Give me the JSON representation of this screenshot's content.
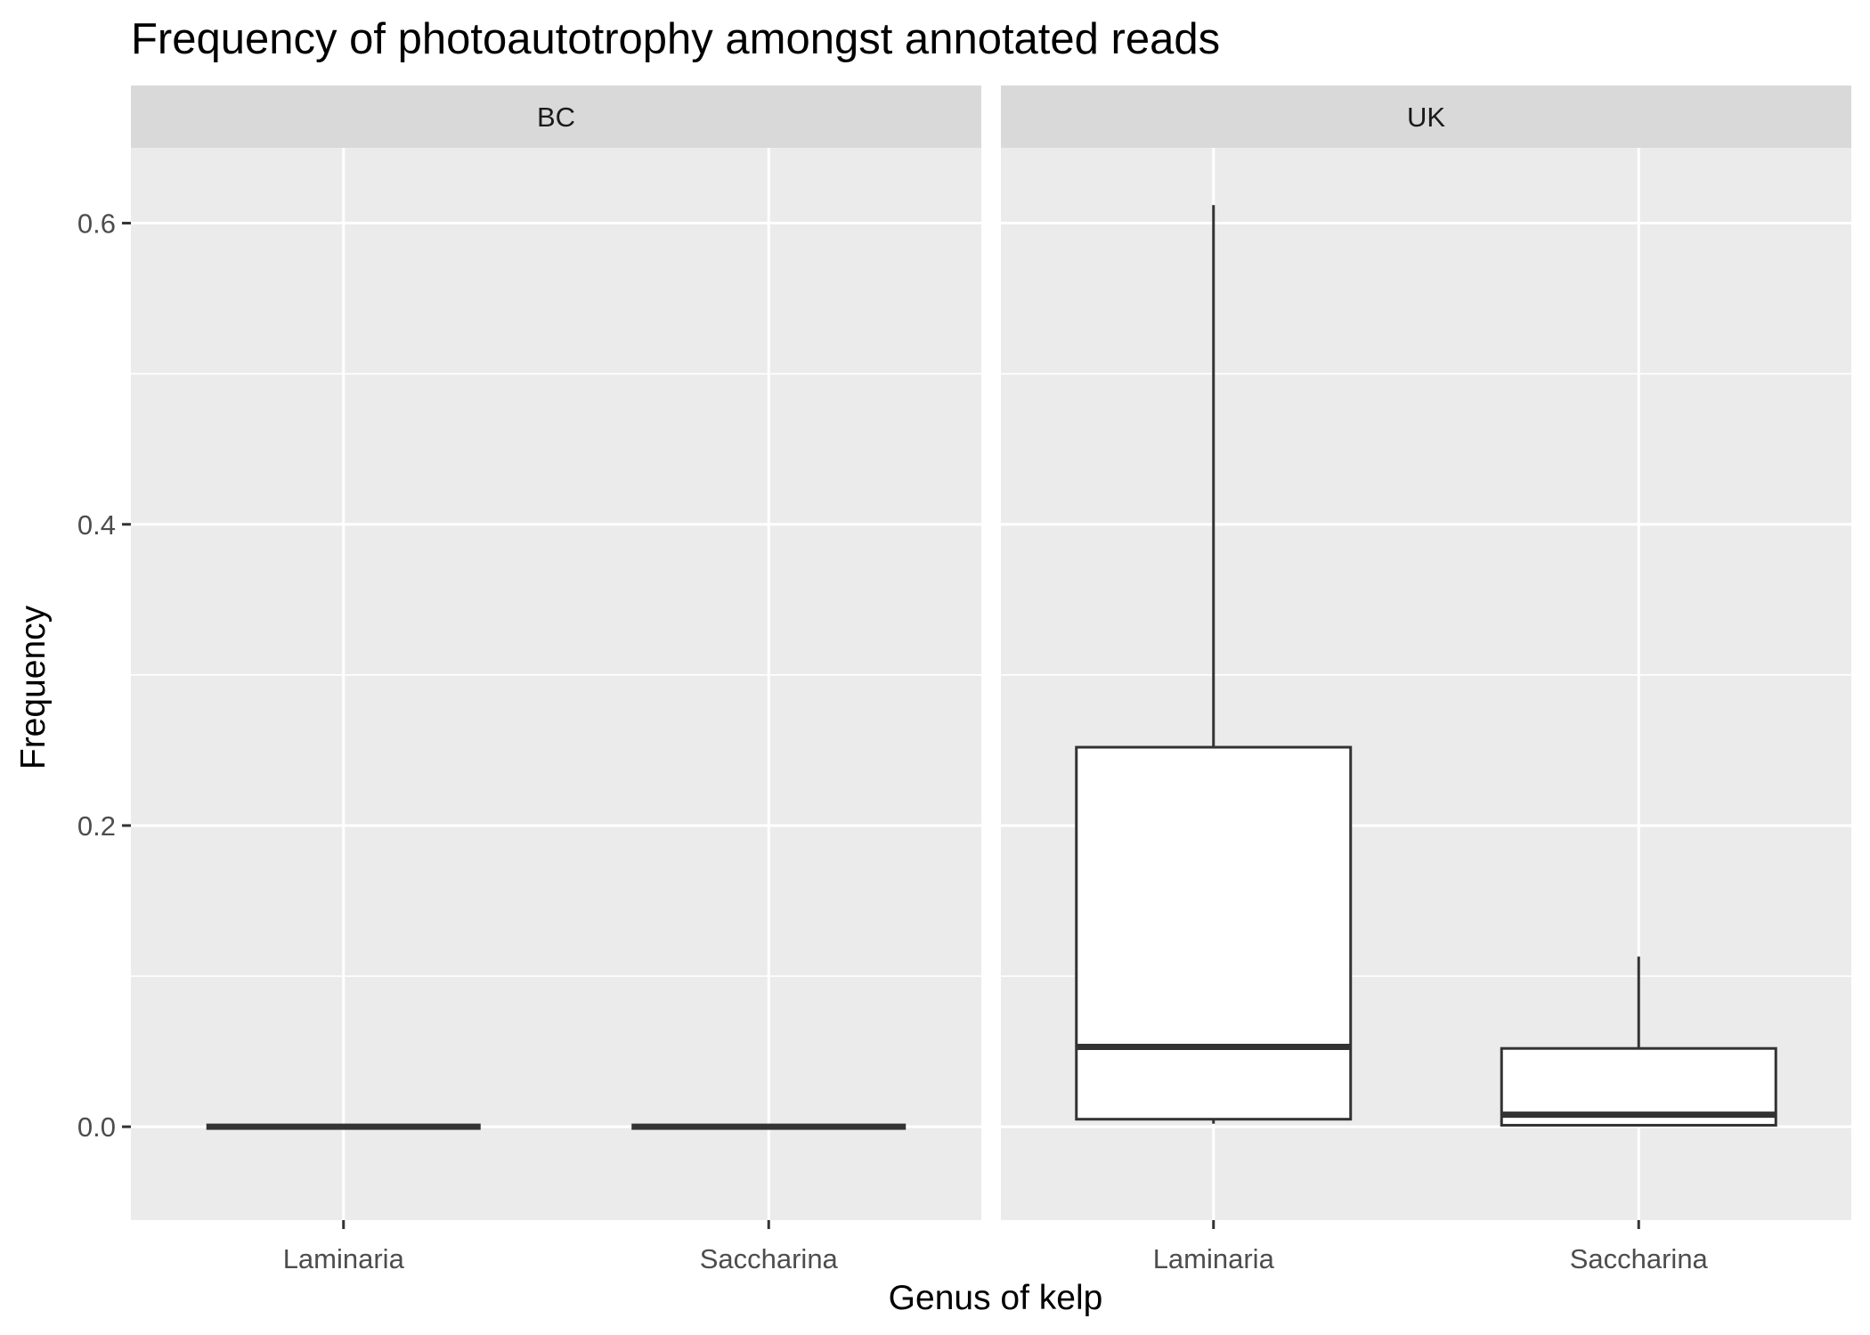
{
  "chart_data": {
    "type": "boxplot",
    "title": "Frequency of photoautotrophy amongst annotated reads",
    "xlabel": "Genus of kelp",
    "ylabel": "Frequency",
    "ylim": [
      -0.062,
      0.65
    ],
    "yticks": [
      0.0,
      0.2,
      0.4,
      0.6
    ],
    "ytick_labels": [
      "0.0",
      "0.2",
      "0.4",
      "0.6"
    ],
    "categories": [
      "Laminaria",
      "Saccharina"
    ],
    "grid": true,
    "colors": {
      "panel_background": "#ebebeb",
      "strip_background": "#d9d9d9",
      "grid_line": "#ffffff",
      "box_fill": "#ffffff",
      "box_line": "#333333"
    },
    "facets": [
      {
        "name": "BC",
        "boxes": [
          {
            "category": "Laminaria",
            "ymin": 0.0,
            "q1": 0.0,
            "median": 0.0,
            "q3": 0.0,
            "ymax": 0.0
          },
          {
            "category": "Saccharina",
            "ymin": 0.0,
            "q1": 0.0,
            "median": 0.0,
            "q3": 0.0,
            "ymax": 0.0
          }
        ]
      },
      {
        "name": "UK",
        "boxes": [
          {
            "category": "Laminaria",
            "ymin": 0.002,
            "q1": 0.005,
            "median": 0.053,
            "q3": 0.252,
            "ymax": 0.612
          },
          {
            "category": "Saccharina",
            "ymin": 0.001,
            "q1": 0.001,
            "median": 0.008,
            "q3": 0.052,
            "ymax": 0.113
          }
        ]
      }
    ]
  }
}
